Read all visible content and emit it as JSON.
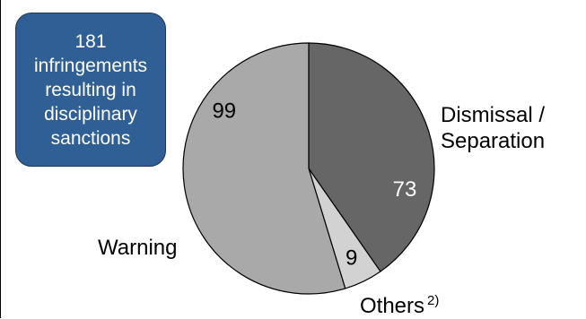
{
  "callout": {
    "text": "181\ninfringements\nresulting in\ndisciplinary\nsanctions",
    "color": "#2f5f94"
  },
  "colors": {
    "dismissal": "#666666",
    "others": "#d2d2d2",
    "warning": "#a9a9a9",
    "edge": "#000000"
  },
  "chart_data": {
    "type": "pie",
    "total": 181,
    "slices": [
      {
        "label": "Dismissal / Separation",
        "value": 73
      },
      {
        "label": "Others",
        "value": 9,
        "footnote": "2)"
      },
      {
        "label": "Warning",
        "value": 99
      }
    ]
  }
}
